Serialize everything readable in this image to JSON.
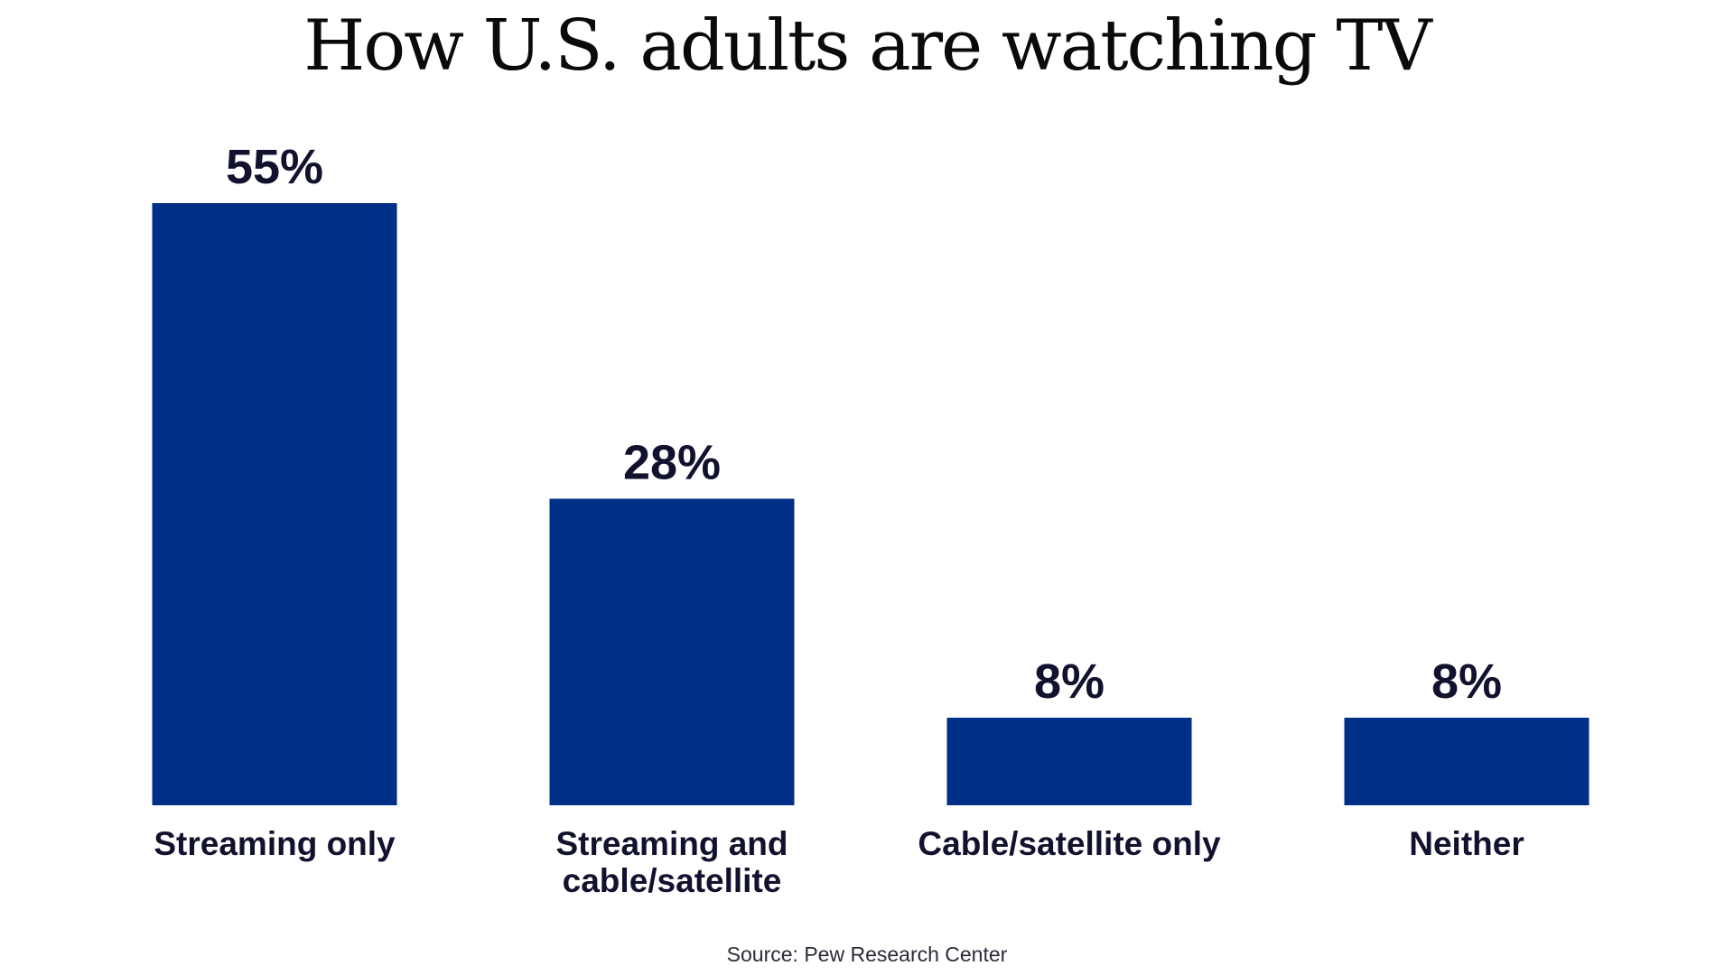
{
  "chart_data": {
    "type": "bar",
    "title": "How U.S. adults are watching TV",
    "categories": [
      [
        "Streaming only"
      ],
      [
        "Streaming and",
        "cable/satellite"
      ],
      [
        "Cable/satellite only"
      ],
      [
        "Neither"
      ]
    ],
    "values": [
      55,
      28,
      8,
      8
    ],
    "value_labels": [
      "55%",
      "28%",
      "8%",
      "8%"
    ],
    "ylim": [
      0,
      55
    ],
    "grid": false,
    "bar_color": "#002f87",
    "text_color": "#12122e"
  },
  "source": "Source: Pew Research Center"
}
